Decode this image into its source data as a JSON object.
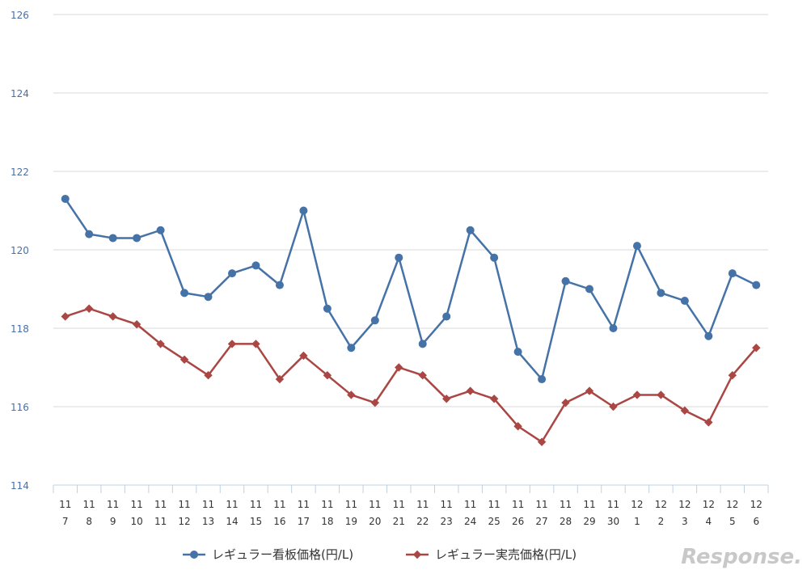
{
  "chart_data": {
    "type": "line",
    "categories": [
      [
        "11",
        "7"
      ],
      [
        "11",
        "8"
      ],
      [
        "11",
        "9"
      ],
      [
        "11",
        "10"
      ],
      [
        "11",
        "11"
      ],
      [
        "11",
        "12"
      ],
      [
        "11",
        "13"
      ],
      [
        "11",
        "14"
      ],
      [
        "11",
        "15"
      ],
      [
        "11",
        "16"
      ],
      [
        "11",
        "17"
      ],
      [
        "11",
        "18"
      ],
      [
        "11",
        "19"
      ],
      [
        "11",
        "20"
      ],
      [
        "11",
        "21"
      ],
      [
        "11",
        "22"
      ],
      [
        "11",
        "23"
      ],
      [
        "11",
        "24"
      ],
      [
        "11",
        "25"
      ],
      [
        "11",
        "26"
      ],
      [
        "11",
        "27"
      ],
      [
        "11",
        "28"
      ],
      [
        "11",
        "29"
      ],
      [
        "11",
        "30"
      ],
      [
        "12",
        "1"
      ],
      [
        "12",
        "2"
      ],
      [
        "12",
        "3"
      ],
      [
        "12",
        "4"
      ],
      [
        "12",
        "5"
      ],
      [
        "12",
        "6"
      ]
    ],
    "series": [
      {
        "name": "レギュラー看板価格(円/L)",
        "color": "#4572a7",
        "marker": "circle",
        "values": [
          121.3,
          120.4,
          120.3,
          120.3,
          120.5,
          118.9,
          118.8,
          119.4,
          119.6,
          119.1,
          121.0,
          118.5,
          117.5,
          118.2,
          119.8,
          117.6,
          118.3,
          120.5,
          119.8,
          117.4,
          116.7,
          119.2,
          119.0,
          118.0,
          120.1,
          118.9,
          118.7,
          117.8,
          119.4,
          119.1
        ]
      },
      {
        "name": "レギュラー実売価格(円/L)",
        "color": "#aa4643",
        "marker": "diamond",
        "values": [
          118.3,
          118.5,
          118.3,
          118.1,
          117.6,
          117.2,
          116.8,
          117.6,
          117.6,
          116.7,
          117.3,
          116.8,
          116.3,
          116.1,
          117.0,
          116.8,
          116.2,
          116.4,
          116.2,
          115.5,
          115.1,
          116.1,
          116.4,
          116.0,
          116.3,
          116.3,
          115.9,
          115.6,
          116.8,
          117.5
        ]
      }
    ],
    "yticks": [
      "114",
      "116",
      "118",
      "120",
      "122",
      "124",
      "126"
    ],
    "ylim": [
      114,
      126
    ],
    "grid": true,
    "legend_position": "bottom",
    "watermark": "Response."
  }
}
